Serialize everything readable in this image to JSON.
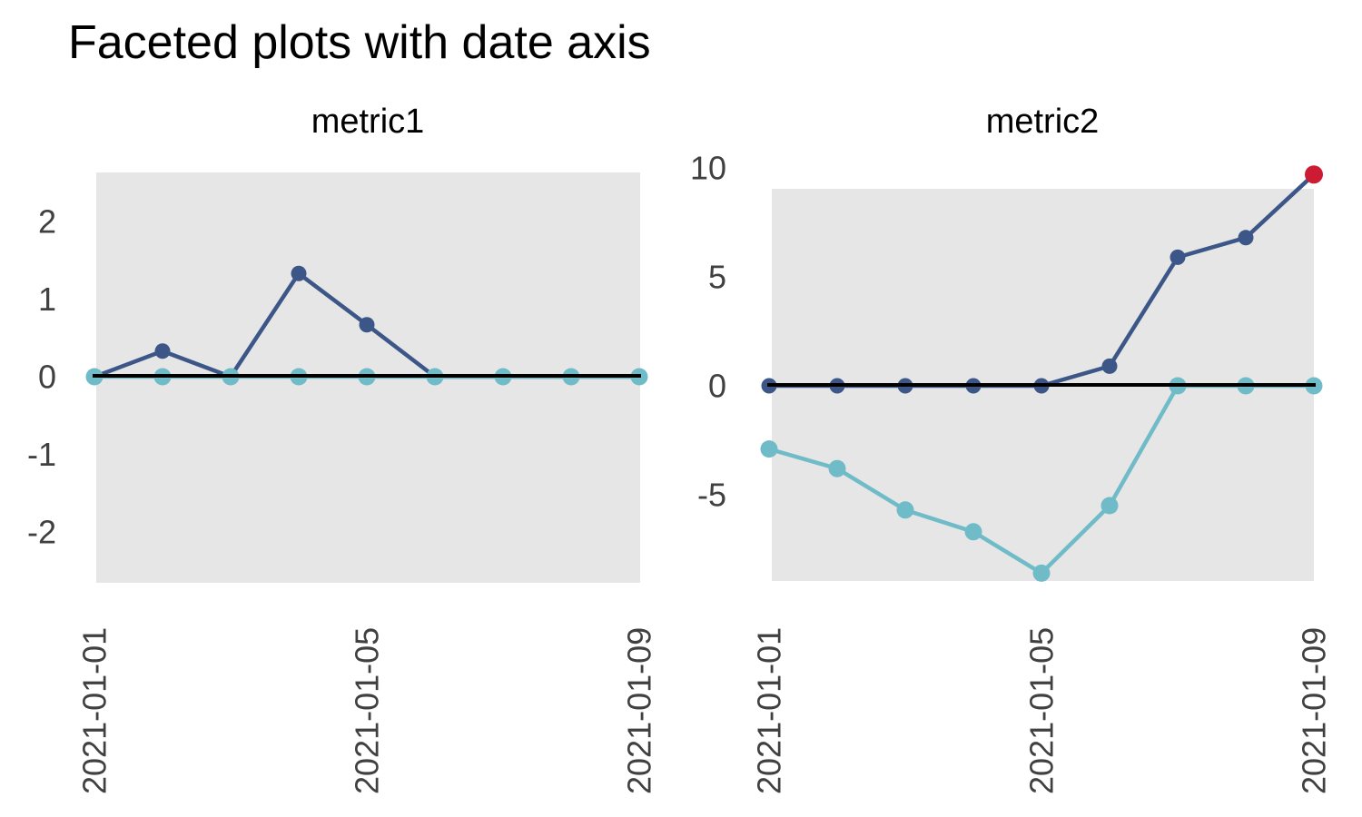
{
  "title": "Faceted plots with date axis",
  "colors": {
    "page_bg": "#ffffff",
    "panel_bg": "#e6e6e6",
    "zero_line": "#000000",
    "tick_label": "#404040",
    "title_text": "#000000",
    "navy": "#3b5687",
    "teal": "#6fbcc8",
    "red": "#cc1b33"
  },
  "chart_data": [
    {
      "type": "line",
      "title": "metric1",
      "x": [
        "2021-01-01",
        "2021-01-02",
        "2021-01-03",
        "2021-01-04",
        "2021-01-05",
        "2021-01-06",
        "2021-01-07",
        "2021-01-08",
        "2021-01-09"
      ],
      "x_tick_labels": [
        "2021-01-01",
        "2021-01-05",
        "2021-01-09"
      ],
      "y_ticks": [
        2,
        1,
        0,
        -1,
        -2
      ],
      "y_tick_labels": [
        "2",
        "1",
        "0",
        "-1",
        "-2"
      ],
      "ylim": [
        -2.65,
        2.65
      ],
      "hline": 0,
      "grid": false,
      "legend": "none",
      "series": [
        {
          "color_key": "navy",
          "values": [
            0,
            0.33,
            0,
            1.33,
            0.67,
            0,
            0,
            0,
            0
          ]
        },
        {
          "color_key": "teal",
          "values": [
            0,
            0,
            0,
            0,
            0,
            0,
            0,
            0,
            0
          ]
        }
      ]
    },
    {
      "type": "line",
      "title": "metric2",
      "x": [
        "2021-01-01",
        "2021-01-02",
        "2021-01-03",
        "2021-01-04",
        "2021-01-05",
        "2021-01-06",
        "2021-01-07",
        "2021-01-08",
        "2021-01-09"
      ],
      "x_tick_labels": [
        "2021-01-01",
        "2021-01-05",
        "2021-01-09"
      ],
      "y_ticks": [
        10,
        5,
        0,
        -5
      ],
      "y_tick_labels": [
        "10",
        "5",
        "0",
        "-5"
      ],
      "ylim": [
        -8.96,
        9.04
      ],
      "hline": 0,
      "grid": false,
      "legend": "none",
      "series": [
        {
          "color_key": "navy",
          "values": [
            0,
            0,
            0,
            0,
            0,
            0.9,
            5.9,
            6.8,
            9.7
          ],
          "last_point_color_key": "red"
        },
        {
          "color_key": "teal",
          "values": [
            -2.9,
            -3.8,
            -5.7,
            -6.7,
            -8.6,
            -5.5,
            0,
            0,
            0
          ]
        }
      ]
    }
  ]
}
